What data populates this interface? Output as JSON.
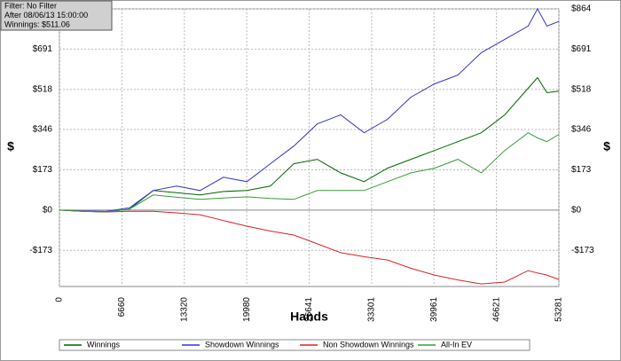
{
  "chart_data": {
    "type": "line",
    "info_lines": [
      "Filter: No Filter",
      "After 08/06/13 15:00:00",
      "Winnings: $511.06"
    ],
    "x_label": "Hands",
    "y_label": "$",
    "x": [
      0,
      2500,
      5000,
      7500,
      10000,
      12500,
      15000,
      17500,
      20000,
      22500,
      25000,
      27500,
      30000,
      32500,
      35000,
      37500,
      40000,
      42500,
      45000,
      47500,
      50000,
      51000,
      52000,
      53281
    ],
    "xlim": [
      0,
      53281
    ],
    "xticks": [
      0,
      6660,
      13320,
      19980,
      26641,
      33301,
      39961,
      46621,
      53281
    ],
    "ylim": [
      -328,
      864
    ],
    "yticks": [
      {
        "value": -173,
        "label": "-$173"
      },
      {
        "value": 0,
        "label": "$0"
      },
      {
        "value": 173,
        "label": "$173"
      },
      {
        "value": 346,
        "label": "$346"
      },
      {
        "value": 518,
        "label": "$518"
      },
      {
        "value": 691,
        "label": "$691"
      },
      {
        "value": 864,
        "label": "$864"
      }
    ],
    "grid": true,
    "series": [
      {
        "name": "Winnings",
        "color": "#006400",
        "values": [
          0,
          -5,
          -8,
          5,
          84,
          75,
          65,
          80,
          84,
          103,
          199,
          218,
          160,
          122,
          180,
          218,
          256,
          294,
          332,
          409,
          523,
          569,
          504,
          511
        ]
      },
      {
        "name": "Showdown Winnings",
        "color": "#3333cc",
        "values": [
          0,
          -3,
          -5,
          10,
          84,
          103,
          84,
          141,
          122,
          199,
          275,
          370,
          409,
          332,
          390,
          485,
          542,
          580,
          676,
          733,
          790,
          864,
          790,
          810
        ]
      },
      {
        "name": "Non Showdown Winnings",
        "color": "#dd2222",
        "values": [
          0,
          -5,
          -8,
          -5,
          -5,
          -12,
          -20,
          -45,
          -69,
          -90,
          -107,
          -145,
          -183,
          -200,
          -214,
          -250,
          -279,
          -300,
          -317,
          -309,
          -260,
          -270,
          -279,
          -298
        ]
      },
      {
        "name": "All-In EV",
        "color": "#3a9a3a",
        "values": [
          0,
          -5,
          -8,
          5,
          65,
          55,
          46,
          52,
          57,
          50,
          46,
          84,
          84,
          84,
          122,
          160,
          180,
          218,
          160,
          256,
          332,
          310,
          294,
          325
        ]
      }
    ]
  }
}
